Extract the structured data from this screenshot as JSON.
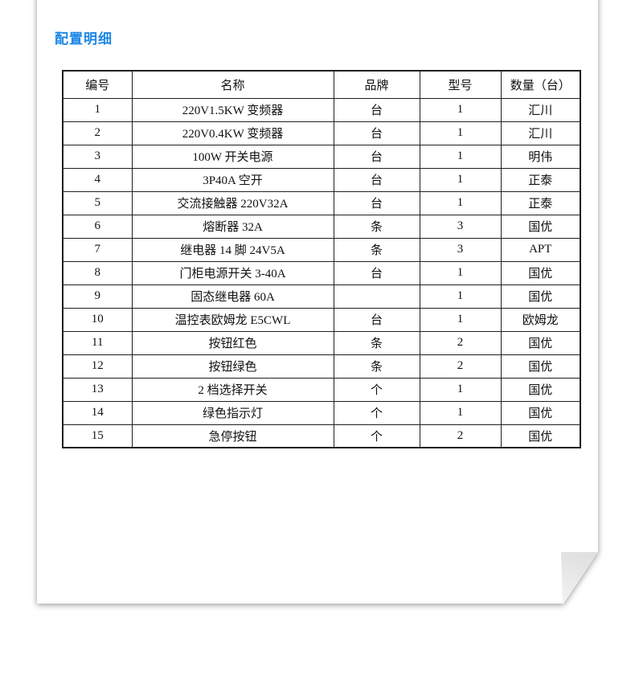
{
  "page": {
    "title": "配置明细",
    "title_color": "#1b87e6"
  },
  "table": {
    "headers": [
      "编号",
      "名称",
      "品牌",
      "型号",
      "数量（台）"
    ],
    "rows": [
      [
        "1",
        "220V1.5KW 变频器",
        "台",
        "1",
        "汇川"
      ],
      [
        "2",
        "220V0.4KW 变频器",
        "台",
        "1",
        "汇川"
      ],
      [
        "3",
        "100W 开关电源",
        "台",
        "1",
        "明伟"
      ],
      [
        "4",
        "3P40A 空开",
        "台",
        "1",
        "正泰"
      ],
      [
        "5",
        "交流接触器 220V32A",
        "台",
        "1",
        "正泰"
      ],
      [
        "6",
        "熔断器 32A",
        "条",
        "3",
        "国优"
      ],
      [
        "7",
        "继电器 14 脚 24V5A",
        "条",
        "3",
        "APT"
      ],
      [
        "8",
        "门柜电源开关 3-40A",
        "台",
        "1",
        "国优"
      ],
      [
        "9",
        "固态继电器 60A",
        "",
        "1",
        "国优"
      ],
      [
        "10",
        "温控表欧姆龙 E5CWL",
        "台",
        "1",
        "欧姆龙"
      ],
      [
        "11",
        "按钮红色",
        "条",
        "2",
        "国优"
      ],
      [
        "12",
        "按钮绿色",
        "条",
        "2",
        "国优"
      ],
      [
        "13",
        "2 档选择开关",
        "个",
        "1",
        "国优"
      ],
      [
        "14",
        "绿色指示灯",
        "个",
        "1",
        "国优"
      ],
      [
        "15",
        "急停按钮",
        "个",
        "2",
        "国优"
      ]
    ]
  }
}
